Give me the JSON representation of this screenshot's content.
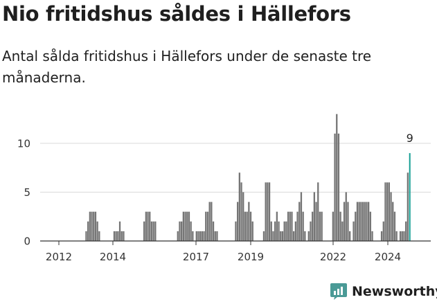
{
  "header": {
    "title": "Nio fritidshus såldes i Hällefors",
    "subtitle": "Antal sålda fritidshus i Hällefors under de senaste tre månaderna."
  },
  "brand": {
    "name": "Newsworthy",
    "color": "#4a9a96",
    "icon": "bar-chart-logo-icon"
  },
  "colors": {
    "bar": "#757575",
    "highlight": "#139e93",
    "grid": "#d9d9d9",
    "axis": "#333333"
  },
  "chart_data": {
    "type": "bar",
    "title": "",
    "xlabel": "",
    "ylabel": "",
    "ylim": [
      0,
      13
    ],
    "yticks": [
      0,
      5,
      10
    ],
    "xticks": [
      "2012",
      "2014",
      "2017",
      "2019",
      "2022",
      "2024"
    ],
    "grid": true,
    "annotation": "9",
    "series": [
      {
        "values": [
          0,
          0,
          0,
          0,
          0,
          0,
          0,
          0,
          0,
          0,
          1,
          2,
          3,
          3,
          3,
          3,
          2,
          1,
          0,
          0,
          0,
          0,
          0,
          0,
          0,
          1,
          1,
          1,
          2,
          1,
          1,
          0,
          0,
          0,
          0,
          0,
          0,
          0,
          0,
          0,
          0,
          2,
          3,
          3,
          3,
          2,
          2,
          2,
          0,
          0,
          0,
          0,
          0,
          0,
          0,
          0,
          0,
          0,
          0,
          1,
          2,
          2,
          3,
          3,
          3,
          3,
          2,
          1,
          0,
          1,
          1,
          1,
          1,
          1,
          3,
          3,
          4,
          4,
          2,
          1,
          1,
          0,
          0,
          0,
          0,
          0,
          0,
          0,
          0,
          0,
          2,
          4,
          7,
          6,
          5,
          3,
          3,
          4,
          3,
          2,
          0,
          0,
          0,
          0,
          0,
          1,
          6,
          6,
          6,
          2,
          1,
          2,
          3,
          2,
          1,
          1,
          2,
          2,
          3,
          3,
          3,
          1,
          2,
          3,
          4,
          5,
          3,
          1,
          0,
          1,
          2,
          3,
          5,
          4,
          6,
          3,
          3,
          0,
          0,
          0,
          0,
          0,
          3,
          11,
          13,
          11,
          3,
          2,
          4,
          5,
          4,
          1,
          0,
          2,
          3,
          4,
          4,
          4,
          4,
          4,
          4,
          4,
          3,
          1,
          0,
          0,
          0,
          0,
          1,
          2,
          6,
          6,
          6,
          5,
          4,
          3,
          1,
          0,
          1,
          1,
          1,
          2,
          7,
          9
        ]
      }
    ]
  }
}
